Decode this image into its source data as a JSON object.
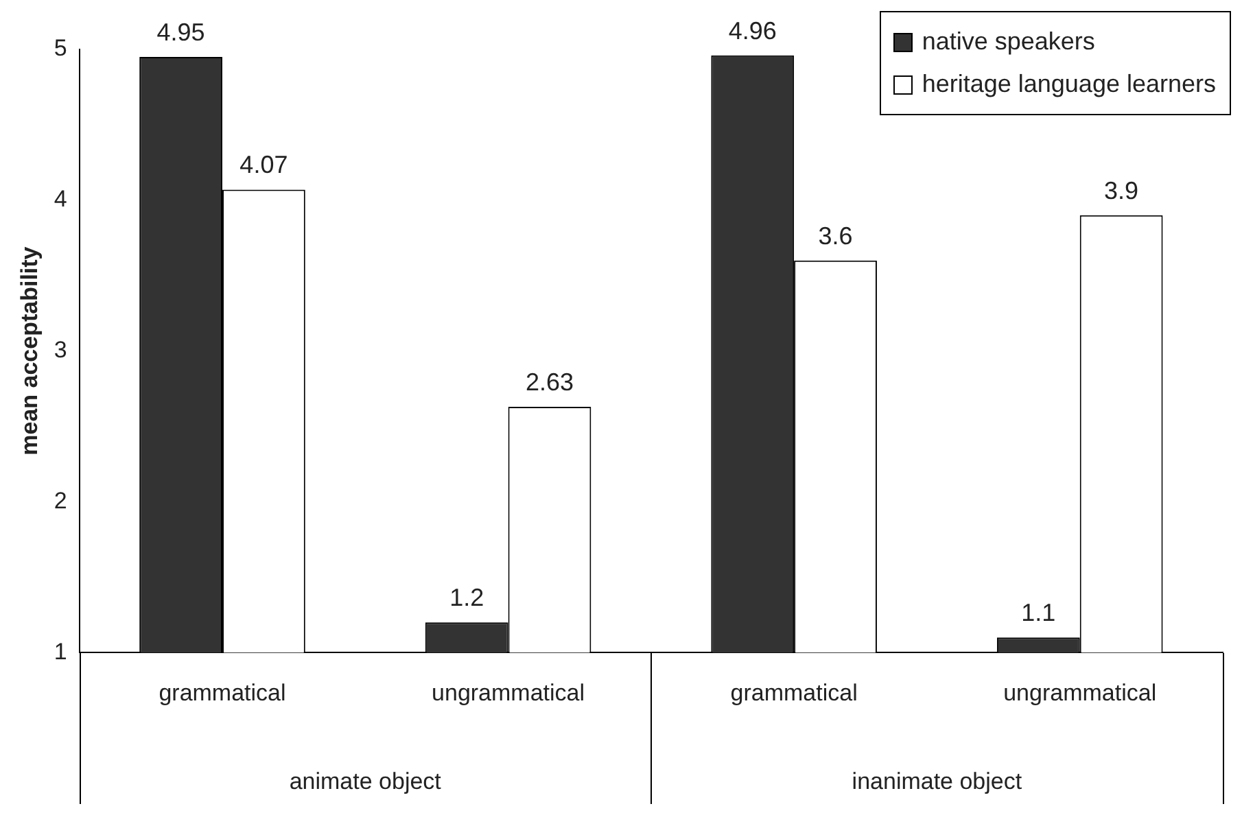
{
  "chart_data": {
    "type": "bar",
    "ylabel": "mean acceptability",
    "categories": [
      "grammatical",
      "ungrammatical",
      "grammatical",
      "ungrammatical"
    ],
    "series": [
      {
        "name": "native speakers",
        "color": "#333333",
        "values": [
          4.95,
          1.2,
          4.96,
          1.1
        ]
      },
      {
        "name": "heritage language learners",
        "color": "#ffffff",
        "values": [
          4.07,
          2.63,
          3.6,
          3.9
        ]
      }
    ],
    "ylim": [
      1,
      5
    ],
    "yticks": [
      1,
      2,
      3,
      4,
      5
    ],
    "grid": false,
    "legend": "top right",
    "data_labels": true,
    "annotations": [
      "animate object",
      "inanimate object"
    ]
  }
}
